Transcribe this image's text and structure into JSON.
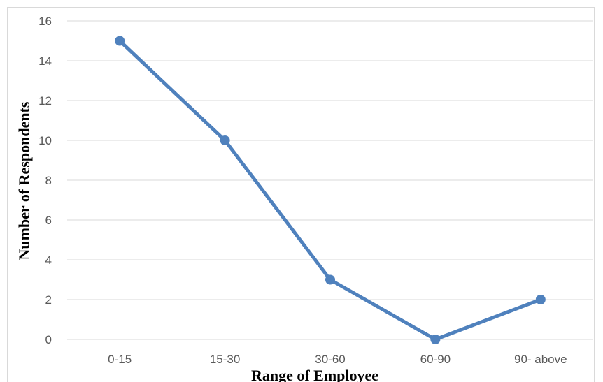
{
  "chart_data": {
    "type": "line",
    "title": "",
    "xlabel": "Range of Employee",
    "ylabel": "Number of Respondents",
    "categories": [
      "0-15",
      "15-30",
      "30-60",
      "60-90",
      "90- above"
    ],
    "series": [
      {
        "values": [
          15,
          10,
          3,
          0,
          2
        ],
        "color": "#4f81bd"
      }
    ],
    "ylim": [
      0,
      16
    ],
    "yticks": [
      0,
      2,
      4,
      6,
      8,
      10,
      12,
      14,
      16
    ],
    "grid": true,
    "legend": "none",
    "colors": {
      "line": "#4f81bd",
      "gridline": "#d9d9d9",
      "tick_text": "#595959"
    }
  }
}
